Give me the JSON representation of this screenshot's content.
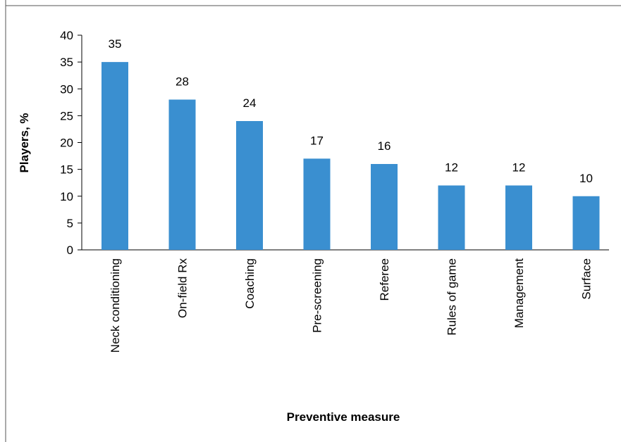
{
  "chart_data": {
    "type": "bar",
    "title": "",
    "xlabel": "Preventive measure",
    "ylabel": "Players, %",
    "ylim": [
      0,
      40
    ],
    "yticks": [
      0,
      5,
      10,
      15,
      20,
      25,
      30,
      35,
      40
    ],
    "grid": false,
    "legend": "none",
    "bar_color": "#3a8fd0",
    "categories": [
      "Neck conditioning",
      "On-field Rx",
      "Coaching",
      "Pre-screening",
      "Referee",
      "Rules of game",
      "Management",
      "Surface"
    ],
    "values": [
      35,
      28,
      24,
      17,
      16,
      12,
      12,
      10
    ]
  }
}
